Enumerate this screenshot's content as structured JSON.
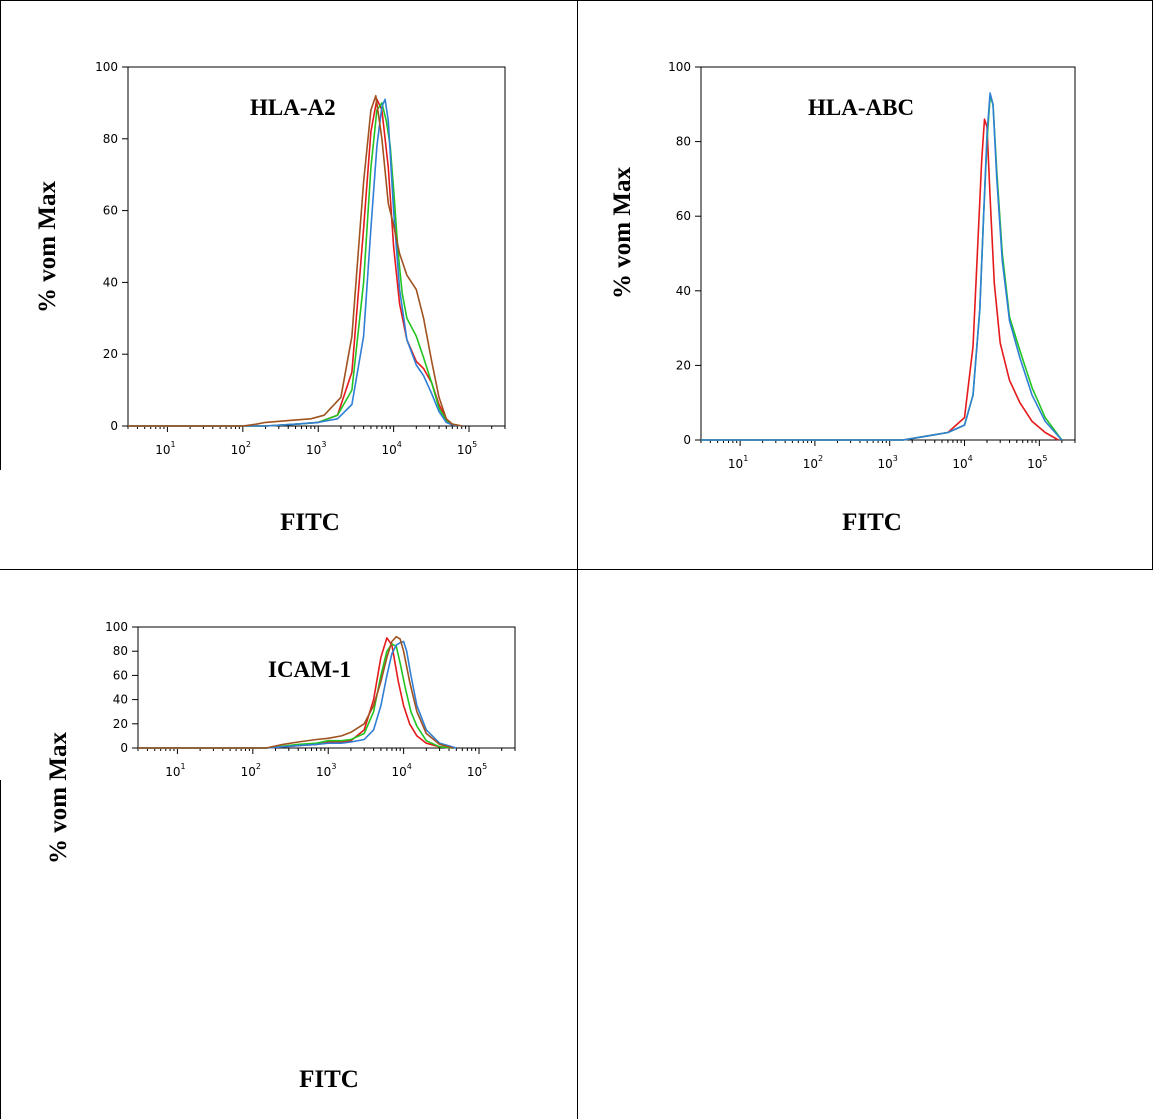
{
  "colors": {
    "red": "#e41a1c",
    "green": "#22c422",
    "blue": "#2f7fd6",
    "brown": "#a0521f"
  },
  "chart_data": [
    {
      "type": "line",
      "title": "HLA-A2",
      "xlabel": "FITC",
      "ylabel": "% vom Max",
      "xscale": "log",
      "xlim": [
        3,
        300000
      ],
      "ylim": [
        0,
        100
      ],
      "yticks": [
        0,
        20,
        40,
        60,
        80,
        100
      ],
      "xticks": [
        {
          "base": "10",
          "exp": "1"
        },
        {
          "base": "10",
          "exp": "2"
        },
        {
          "base": "10",
          "exp": "3"
        },
        {
          "base": "10",
          "exp": "4"
        },
        {
          "base": "10",
          "exp": "5"
        }
      ],
      "series": [
        {
          "color": "red",
          "x": [
            3,
            200,
            500,
            1000,
            1800,
            2800,
            4000,
            5000,
            6000,
            7000,
            8500,
            10000,
            12000,
            15000,
            20000,
            25000,
            32000,
            40000,
            50000,
            60000,
            80000
          ],
          "y": [
            0,
            0,
            0.5,
            1,
            3,
            15,
            55,
            82,
            91,
            88,
            72,
            50,
            34,
            24,
            18,
            16,
            12,
            6,
            2,
            0.5,
            0
          ]
        },
        {
          "color": "green",
          "x": [
            3,
            200,
            500,
            1000,
            1800,
            2800,
            4000,
            5000,
            6000,
            7000,
            8000,
            9000,
            10000,
            11500,
            13000,
            15000,
            20000,
            25000,
            32000,
            40000,
            50000,
            60000,
            80000
          ],
          "y": [
            0,
            0,
            0.5,
            1,
            3,
            10,
            40,
            72,
            88,
            90,
            85,
            78,
            66,
            48,
            37,
            30,
            25,
            19,
            12,
            5,
            1.5,
            0.5,
            0
          ]
        },
        {
          "color": "blue",
          "x": [
            3,
            200,
            500,
            1000,
            1800,
            2800,
            4000,
            5000,
            6000,
            7000,
            7700,
            8500,
            10000,
            12000,
            15000,
            20000,
            25000,
            32000,
            40000,
            50000,
            60000,
            80000
          ],
          "y": [
            0,
            0,
            0.5,
            1,
            2,
            6,
            25,
            55,
            78,
            89,
            91,
            85,
            60,
            38,
            24,
            17,
            14,
            9,
            4,
            1,
            0.3,
            0
          ]
        },
        {
          "color": "brown",
          "x": [
            3,
            100,
            150,
            200,
            400,
            800,
            1200,
            2000,
            2800,
            4000,
            5000,
            5800,
            7000,
            8500,
            10000,
            12000,
            15000,
            20000,
            25000,
            32000,
            40000,
            50000,
            60000,
            80000
          ],
          "y": [
            0,
            0,
            0.5,
            1,
            1.5,
            2,
            3,
            8,
            25,
            68,
            88,
            92,
            80,
            62,
            56,
            48,
            42,
            38,
            30,
            18,
            8,
            2,
            0.5,
            0
          ]
        }
      ]
    },
    {
      "type": "line",
      "title": "HLA-ABC",
      "xlabel": "FITC",
      "ylabel": "% vom Max",
      "xscale": "log",
      "xlim": [
        3,
        300000
      ],
      "ylim": [
        0,
        100
      ],
      "yticks": [
        0,
        20,
        40,
        60,
        80,
        100
      ],
      "xticks": [
        {
          "base": "10",
          "exp": "1"
        },
        {
          "base": "10",
          "exp": "2"
        },
        {
          "base": "10",
          "exp": "3"
        },
        {
          "base": "10",
          "exp": "4"
        },
        {
          "base": "10",
          "exp": "5"
        }
      ],
      "series": [
        {
          "color": "red",
          "x": [
            3,
            1500,
            3000,
            6000,
            10000,
            13000,
            15000,
            17000,
            18500,
            20000,
            22000,
            25000,
            30000,
            40000,
            55000,
            80000,
            120000,
            180000
          ],
          "y": [
            0,
            0,
            1,
            2,
            6,
            25,
            52,
            75,
            86,
            84,
            65,
            42,
            26,
            16,
            10,
            5,
            2,
            0
          ]
        },
        {
          "color": "green",
          "x": [
            3,
            1500,
            3000,
            6000,
            10000,
            13000,
            16000,
            18000,
            20000,
            22000,
            24000,
            27000,
            32000,
            40000,
            55000,
            80000,
            120000,
            200000
          ],
          "y": [
            0,
            0,
            1,
            2,
            4,
            12,
            35,
            60,
            80,
            92,
            90,
            72,
            50,
            33,
            24,
            14,
            6,
            0
          ]
        },
        {
          "color": "blue",
          "x": [
            3,
            1500,
            3000,
            6000,
            10000,
            13000,
            16000,
            18000,
            20000,
            22000,
            24000,
            27000,
            32000,
            40000,
            55000,
            80000,
            120000,
            200000
          ],
          "y": [
            0,
            0,
            1,
            2,
            4,
            12,
            35,
            60,
            82,
            93,
            90,
            70,
            48,
            32,
            22,
            12,
            5,
            0
          ]
        }
      ]
    },
    {
      "type": "line",
      "title": "ICAM-1",
      "xlabel": "FITC",
      "ylabel": "% vom Max",
      "xscale": "log",
      "xlim": [
        3,
        300000
      ],
      "ylim": [
        0,
        100
      ],
      "yticks": [
        0,
        20,
        40,
        60,
        80,
        100
      ],
      "xticks": [
        {
          "base": "10",
          "exp": "1"
        },
        {
          "base": "10",
          "exp": "2"
        },
        {
          "base": "10",
          "exp": "3"
        },
        {
          "base": "10",
          "exp": "4"
        },
        {
          "base": "10",
          "exp": "5"
        }
      ],
      "series": [
        {
          "color": "red",
          "x": [
            3,
            150,
            250,
            400,
            700,
            1000,
            1500,
            2000,
            3000,
            4000,
            5000,
            6000,
            7000,
            8500,
            10000,
            12000,
            15000,
            20000,
            30000,
            45000
          ],
          "y": [
            0,
            0,
            1,
            2,
            3,
            5,
            5,
            6,
            15,
            40,
            75,
            91,
            85,
            55,
            35,
            20,
            10,
            4,
            1,
            0
          ]
        },
        {
          "color": "green",
          "x": [
            3,
            150,
            250,
            400,
            700,
            1000,
            1500,
            2000,
            3000,
            4000,
            5000,
            6000,
            7000,
            8000,
            9000,
            10500,
            12500,
            15000,
            20000,
            30000,
            45000
          ],
          "y": [
            0,
            0,
            1.5,
            3,
            4,
            6,
            6,
            7,
            12,
            30,
            60,
            80,
            86,
            84,
            70,
            50,
            30,
            18,
            6,
            1,
            0
          ]
        },
        {
          "color": "blue",
          "x": [
            3,
            150,
            250,
            400,
            700,
            1000,
            1500,
            2000,
            3000,
            4000,
            5000,
            6000,
            7000,
            8000,
            9000,
            10000,
            11000,
            12500,
            15000,
            20000,
            30000,
            50000
          ],
          "y": [
            0,
            0,
            1,
            2,
            3,
            4,
            4,
            5,
            7,
            15,
            35,
            60,
            78,
            85,
            87,
            88,
            80,
            60,
            35,
            15,
            4,
            0
          ]
        },
        {
          "color": "brown",
          "x": [
            3,
            150,
            250,
            400,
            700,
            1000,
            1500,
            2000,
            3000,
            4000,
            5000,
            6000,
            7000,
            8000,
            9000,
            10000,
            12000,
            15000,
            20000,
            30000,
            45000
          ],
          "y": [
            0,
            0,
            3,
            5,
            7,
            8,
            10,
            13,
            20,
            35,
            55,
            75,
            88,
            92,
            90,
            80,
            55,
            30,
            12,
            3,
            0
          ]
        }
      ]
    }
  ]
}
